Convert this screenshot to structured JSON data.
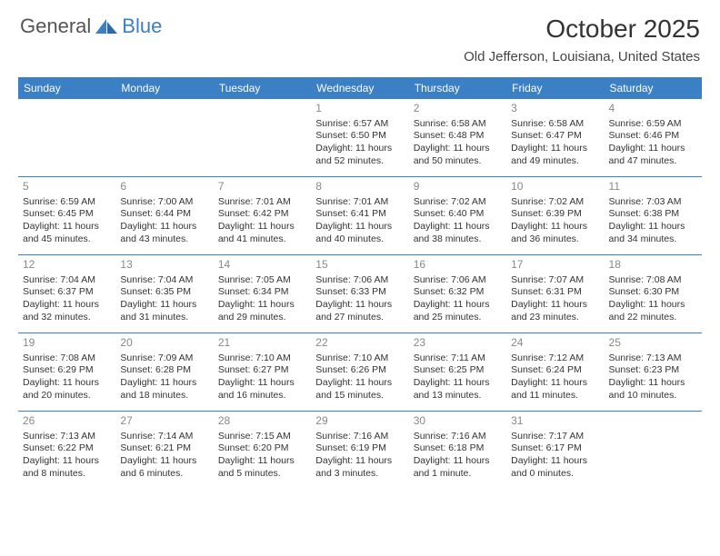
{
  "logo": {
    "word1": "General",
    "word2": "Blue"
  },
  "title": "October 2025",
  "location": "Old Jefferson, Louisiana, United States",
  "colors": {
    "header_bg": "#3b7fc4",
    "header_text": "#ffffff",
    "rule": "#3b7fc4",
    "daynum": "#888888",
    "body_text": "#333333",
    "background": "#ffffff"
  },
  "fonts": {
    "title_size": 28,
    "location_size": 15,
    "header_size": 12,
    "cell_size": 10.5
  },
  "day_names": [
    "Sunday",
    "Monday",
    "Tuesday",
    "Wednesday",
    "Thursday",
    "Friday",
    "Saturday"
  ],
  "weeks": [
    [
      {},
      {},
      {},
      {
        "n": "1",
        "sunrise": "Sunrise: 6:57 AM",
        "sunset": "Sunset: 6:50 PM",
        "daylight": "Daylight: 11 hours and 52 minutes."
      },
      {
        "n": "2",
        "sunrise": "Sunrise: 6:58 AM",
        "sunset": "Sunset: 6:48 PM",
        "daylight": "Daylight: 11 hours and 50 minutes."
      },
      {
        "n": "3",
        "sunrise": "Sunrise: 6:58 AM",
        "sunset": "Sunset: 6:47 PM",
        "daylight": "Daylight: 11 hours and 49 minutes."
      },
      {
        "n": "4",
        "sunrise": "Sunrise: 6:59 AM",
        "sunset": "Sunset: 6:46 PM",
        "daylight": "Daylight: 11 hours and 47 minutes."
      }
    ],
    [
      {
        "n": "5",
        "sunrise": "Sunrise: 6:59 AM",
        "sunset": "Sunset: 6:45 PM",
        "daylight": "Daylight: 11 hours and 45 minutes."
      },
      {
        "n": "6",
        "sunrise": "Sunrise: 7:00 AM",
        "sunset": "Sunset: 6:44 PM",
        "daylight": "Daylight: 11 hours and 43 minutes."
      },
      {
        "n": "7",
        "sunrise": "Sunrise: 7:01 AM",
        "sunset": "Sunset: 6:42 PM",
        "daylight": "Daylight: 11 hours and 41 minutes."
      },
      {
        "n": "8",
        "sunrise": "Sunrise: 7:01 AM",
        "sunset": "Sunset: 6:41 PM",
        "daylight": "Daylight: 11 hours and 40 minutes."
      },
      {
        "n": "9",
        "sunrise": "Sunrise: 7:02 AM",
        "sunset": "Sunset: 6:40 PM",
        "daylight": "Daylight: 11 hours and 38 minutes."
      },
      {
        "n": "10",
        "sunrise": "Sunrise: 7:02 AM",
        "sunset": "Sunset: 6:39 PM",
        "daylight": "Daylight: 11 hours and 36 minutes."
      },
      {
        "n": "11",
        "sunrise": "Sunrise: 7:03 AM",
        "sunset": "Sunset: 6:38 PM",
        "daylight": "Daylight: 11 hours and 34 minutes."
      }
    ],
    [
      {
        "n": "12",
        "sunrise": "Sunrise: 7:04 AM",
        "sunset": "Sunset: 6:37 PM",
        "daylight": "Daylight: 11 hours and 32 minutes."
      },
      {
        "n": "13",
        "sunrise": "Sunrise: 7:04 AM",
        "sunset": "Sunset: 6:35 PM",
        "daylight": "Daylight: 11 hours and 31 minutes."
      },
      {
        "n": "14",
        "sunrise": "Sunrise: 7:05 AM",
        "sunset": "Sunset: 6:34 PM",
        "daylight": "Daylight: 11 hours and 29 minutes."
      },
      {
        "n": "15",
        "sunrise": "Sunrise: 7:06 AM",
        "sunset": "Sunset: 6:33 PM",
        "daylight": "Daylight: 11 hours and 27 minutes."
      },
      {
        "n": "16",
        "sunrise": "Sunrise: 7:06 AM",
        "sunset": "Sunset: 6:32 PM",
        "daylight": "Daylight: 11 hours and 25 minutes."
      },
      {
        "n": "17",
        "sunrise": "Sunrise: 7:07 AM",
        "sunset": "Sunset: 6:31 PM",
        "daylight": "Daylight: 11 hours and 23 minutes."
      },
      {
        "n": "18",
        "sunrise": "Sunrise: 7:08 AM",
        "sunset": "Sunset: 6:30 PM",
        "daylight": "Daylight: 11 hours and 22 minutes."
      }
    ],
    [
      {
        "n": "19",
        "sunrise": "Sunrise: 7:08 AM",
        "sunset": "Sunset: 6:29 PM",
        "daylight": "Daylight: 11 hours and 20 minutes."
      },
      {
        "n": "20",
        "sunrise": "Sunrise: 7:09 AM",
        "sunset": "Sunset: 6:28 PM",
        "daylight": "Daylight: 11 hours and 18 minutes."
      },
      {
        "n": "21",
        "sunrise": "Sunrise: 7:10 AM",
        "sunset": "Sunset: 6:27 PM",
        "daylight": "Daylight: 11 hours and 16 minutes."
      },
      {
        "n": "22",
        "sunrise": "Sunrise: 7:10 AM",
        "sunset": "Sunset: 6:26 PM",
        "daylight": "Daylight: 11 hours and 15 minutes."
      },
      {
        "n": "23",
        "sunrise": "Sunrise: 7:11 AM",
        "sunset": "Sunset: 6:25 PM",
        "daylight": "Daylight: 11 hours and 13 minutes."
      },
      {
        "n": "24",
        "sunrise": "Sunrise: 7:12 AM",
        "sunset": "Sunset: 6:24 PM",
        "daylight": "Daylight: 11 hours and 11 minutes."
      },
      {
        "n": "25",
        "sunrise": "Sunrise: 7:13 AM",
        "sunset": "Sunset: 6:23 PM",
        "daylight": "Daylight: 11 hours and 10 minutes."
      }
    ],
    [
      {
        "n": "26",
        "sunrise": "Sunrise: 7:13 AM",
        "sunset": "Sunset: 6:22 PM",
        "daylight": "Daylight: 11 hours and 8 minutes."
      },
      {
        "n": "27",
        "sunrise": "Sunrise: 7:14 AM",
        "sunset": "Sunset: 6:21 PM",
        "daylight": "Daylight: 11 hours and 6 minutes."
      },
      {
        "n": "28",
        "sunrise": "Sunrise: 7:15 AM",
        "sunset": "Sunset: 6:20 PM",
        "daylight": "Daylight: 11 hours and 5 minutes."
      },
      {
        "n": "29",
        "sunrise": "Sunrise: 7:16 AM",
        "sunset": "Sunset: 6:19 PM",
        "daylight": "Daylight: 11 hours and 3 minutes."
      },
      {
        "n": "30",
        "sunrise": "Sunrise: 7:16 AM",
        "sunset": "Sunset: 6:18 PM",
        "daylight": "Daylight: 11 hours and 1 minute."
      },
      {
        "n": "31",
        "sunrise": "Sunrise: 7:17 AM",
        "sunset": "Sunset: 6:17 PM",
        "daylight": "Daylight: 11 hours and 0 minutes."
      },
      {}
    ]
  ]
}
